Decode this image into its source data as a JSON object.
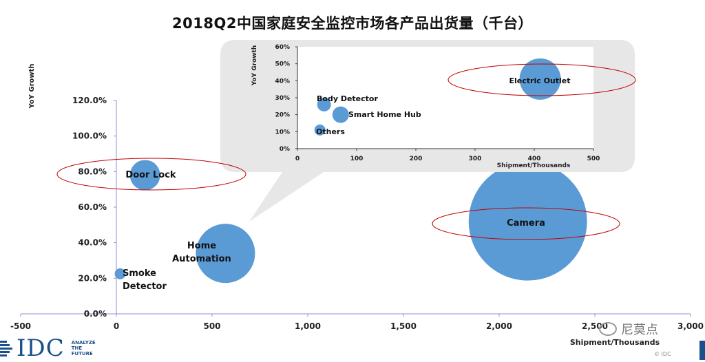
{
  "title": "2018Q2中国家庭安全监控市场各产品出货量（千台）",
  "colors": {
    "bubble": "#5b9bd5",
    "highlight": "#c00000",
    "axis": "#8f8fd6",
    "inset_bg": "#e7e7e7"
  },
  "chart_data": [
    {
      "type": "scatter",
      "title": "",
      "xlabel": "Shipment/Thousands",
      "ylabel": "YoY Growth",
      "xlim": [
        -500,
        3000
      ],
      "ylim": [
        0,
        1.2
      ],
      "x_ticks": [
        "-500",
        "0",
        "500",
        "1,000",
        "1,500",
        "2,000",
        "2,500",
        "3,000"
      ],
      "y_ticks": [
        "0.0%",
        "20.0%",
        "40.0%",
        "60.0%",
        "80.0%",
        "100.0%",
        "120.0%"
      ],
      "points": [
        {
          "name": "Smoke Detector",
          "x": 20,
          "y": 0.225,
          "highlight": false
        },
        {
          "name": "Door Lock",
          "x": 150,
          "y": 0.78,
          "highlight": true
        },
        {
          "name": "Home Automation",
          "x": 570,
          "y": 0.34,
          "highlight": false
        },
        {
          "name": "Camera",
          "x": 2150,
          "y": 0.52,
          "highlight": true
        }
      ]
    },
    {
      "type": "scatter",
      "title": "",
      "xlabel": "Shipment/Thousands",
      "ylabel": "YoY Growth",
      "xlim": [
        0,
        500
      ],
      "ylim": [
        0,
        0.6
      ],
      "x_ticks": [
        "0",
        "100",
        "200",
        "300",
        "400",
        "500"
      ],
      "y_ticks": [
        "0%",
        "10%",
        "20%",
        "30%",
        "40%",
        "50%",
        "60%"
      ],
      "points": [
        {
          "name": "Body Detector",
          "x": 45,
          "y": 0.26,
          "highlight": false
        },
        {
          "name": "Smart Home Hub",
          "x": 73,
          "y": 0.2,
          "highlight": false
        },
        {
          "name": "Others",
          "x": 38,
          "y": 0.11,
          "highlight": false
        },
        {
          "name": "Electric Outlet",
          "x": 410,
          "y": 0.41,
          "highlight": true
        }
      ]
    }
  ],
  "logo": {
    "brand": "IDC",
    "tagline": "ANALYZE\nTHE\nFUTURE"
  },
  "watermark": "尼莫点",
  "copyright": "© IDC"
}
